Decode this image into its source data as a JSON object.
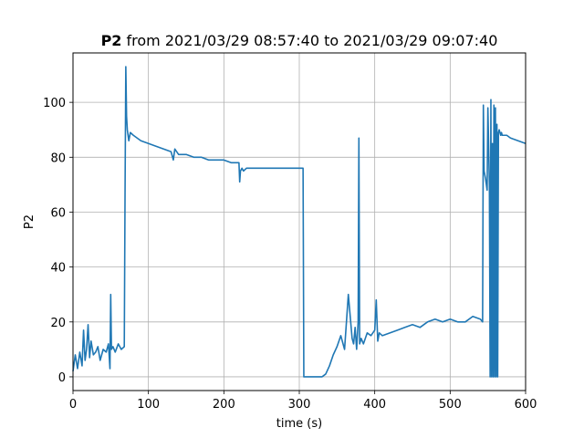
{
  "chart_data": {
    "type": "line",
    "title_bold": "P2",
    "title_rest": " from 2021/03/29 08:57:40 to 2021/03/29 09:07:40",
    "xlabel": "time (s)",
    "ylabel": "P2",
    "xlim": [
      0,
      600
    ],
    "ylim": [
      -5,
      118
    ],
    "xticks": [
      0,
      100,
      200,
      300,
      400,
      500,
      600
    ],
    "yticks": [
      0,
      20,
      40,
      60,
      80,
      100
    ],
    "grid": true,
    "line_color": "#1f77b4",
    "series": [
      {
        "x": [
          0,
          3,
          6,
          9,
          12,
          14,
          16,
          18,
          20,
          22,
          24,
          27,
          30,
          33,
          36,
          40,
          44,
          47,
          49,
          50,
          51,
          53,
          56,
          60,
          64,
          68,
          69,
          70,
          71,
          72,
          74,
          76,
          80,
          90,
          100,
          110,
          120,
          130,
          133,
          135,
          140,
          150,
          160,
          170,
          180,
          190,
          200,
          210,
          220,
          221,
          222,
          224,
          226,
          230,
          240,
          250,
          260,
          270,
          280,
          290,
          300,
          305,
          306,
          307,
          308,
          310,
          320,
          330,
          335,
          340,
          345,
          350,
          355,
          360,
          365,
          370,
          372,
          374,
          376,
          378,
          379,
          380,
          382,
          385,
          390,
          395,
          400,
          402,
          404,
          406,
          410,
          420,
          430,
          440,
          450,
          460,
          470,
          480,
          490,
          500,
          510,
          520,
          530,
          540,
          543,
          544,
          545,
          547,
          549,
          550,
          552,
          553,
          554,
          555,
          556,
          557,
          558,
          559,
          560,
          561,
          562,
          563,
          564,
          565,
          566,
          567,
          568,
          569,
          570,
          575,
          580,
          590,
          600
        ],
        "y": [
          2,
          8,
          3,
          9,
          4,
          17,
          6,
          10,
          19,
          7,
          13,
          8,
          9,
          11,
          6,
          10,
          9,
          12,
          3,
          30,
          10,
          11,
          9,
          12,
          10,
          11,
          67,
          113,
          95,
          90,
          86,
          89,
          88,
          86,
          85,
          84,
          83,
          82,
          79,
          83,
          81,
          81,
          80,
          80,
          79,
          79,
          79,
          78,
          78,
          71,
          75,
          76,
          75,
          76,
          76,
          76,
          76,
          76,
          76,
          76,
          76,
          76,
          0,
          0,
          0,
          0,
          0,
          0,
          1,
          4,
          8,
          11,
          15,
          10,
          30,
          14,
          12,
          18,
          10,
          20,
          87,
          12,
          14,
          12,
          16,
          15,
          17,
          28,
          13,
          16,
          15,
          16,
          17,
          18,
          19,
          18,
          20,
          21,
          20,
          21,
          20,
          20,
          22,
          21,
          20,
          99,
          75,
          72,
          68,
          98,
          70,
          0,
          101,
          0,
          85,
          0,
          99,
          0,
          98,
          0,
          92,
          0,
          89,
          90,
          89,
          88,
          89,
          88,
          88,
          88,
          87,
          86,
          85
        ]
      }
    ]
  }
}
